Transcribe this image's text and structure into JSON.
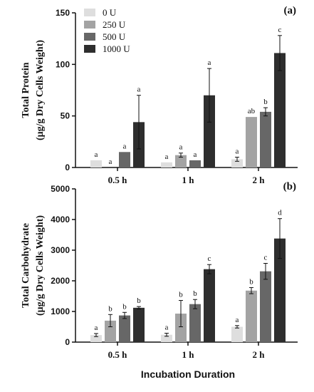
{
  "colors": [
    "#dedede",
    "#a3a3a3",
    "#676767",
    "#2e2e2e"
  ],
  "x_title": "Incubation Duration",
  "chart_data": [
    {
      "type": "bar",
      "panel_label": "(a)",
      "ylabel_lines": [
        "Total Protein",
        "(μg/g Dry Cells Weight)"
      ],
      "categories": [
        "0.5 h",
        "1 h",
        "2 h"
      ],
      "ylim": [
        0,
        150
      ],
      "yticks": [
        0,
        50,
        100,
        150
      ],
      "legend_position": "top-left",
      "series": [
        {
          "name": "0 U",
          "values": [
            7,
            5,
            8
          ],
          "errors": [
            0,
            0,
            2
          ],
          "letters": [
            "a",
            "a",
            "a"
          ]
        },
        {
          "name": "250 U",
          "values": [
            0,
            12,
            49
          ],
          "errors": [
            0,
            2,
            0
          ],
          "letters": [
            "a",
            "a",
            "ab"
          ]
        },
        {
          "name": "500 U",
          "values": [
            15,
            7,
            54
          ],
          "errors": [
            0,
            0,
            4
          ],
          "letters": [
            "a",
            "a",
            "b"
          ]
        },
        {
          "name": "1000 U",
          "values": [
            44,
            70,
            111
          ],
          "errors": [
            26,
            26,
            17
          ],
          "letters": [
            "a",
            "a",
            "c"
          ]
        }
      ]
    },
    {
      "type": "bar",
      "panel_label": "(b)",
      "ylabel_lines": [
        "Total Carbohydrate",
        "(μg/g Dry Cells Weight)"
      ],
      "categories": [
        "0.5 h",
        "1 h",
        "2 h"
      ],
      "ylim": [
        0,
        5000
      ],
      "yticks": [
        0,
        1000,
        2000,
        3000,
        4000,
        5000
      ],
      "series": [
        {
          "name": "0 U",
          "values": [
            230,
            240,
            500
          ],
          "errors": [
            50,
            50,
            40
          ],
          "letters": [
            "a",
            "a",
            "a"
          ]
        },
        {
          "name": "250 U",
          "values": [
            700,
            930,
            1680
          ],
          "errors": [
            200,
            430,
            100
          ],
          "letters": [
            "b",
            "b",
            "b"
          ]
        },
        {
          "name": "500 U",
          "values": [
            870,
            1240,
            2310
          ],
          "errors": [
            100,
            150,
            260
          ],
          "letters": [
            "b",
            "b",
            "c"
          ]
        },
        {
          "name": "1000 U",
          "values": [
            1120,
            2380,
            3380
          ],
          "errors": [
            40,
            150,
            650
          ],
          "letters": [
            "b",
            "c",
            "d"
          ]
        }
      ]
    }
  ]
}
